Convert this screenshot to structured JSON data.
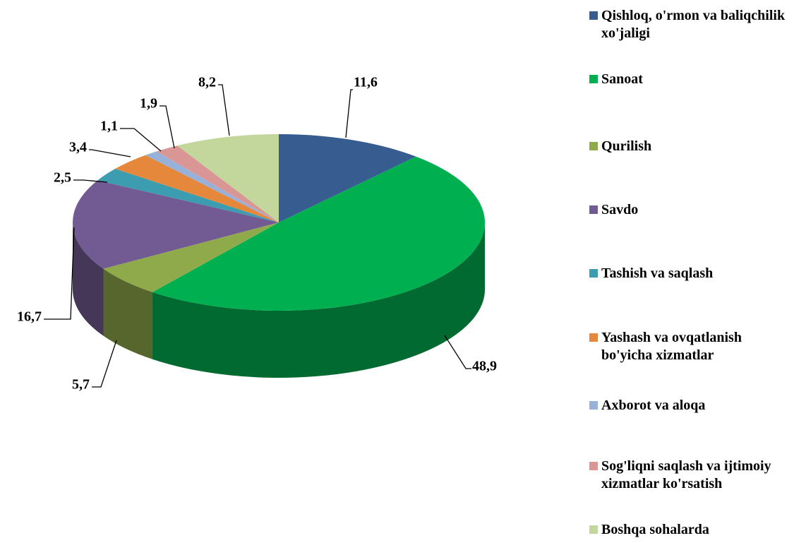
{
  "chart_data": {
    "type": "pie",
    "categories": [
      "Qishloq, o'rmon va baliqchilik xo'jaligi",
      "Sanoat",
      "Qurilish",
      "Savdo",
      "Tashish va saqlash",
      "Yashash va ovqatlanish bo'yicha xizmatlar",
      "Axborot va aloqa",
      "Sog'liqni saqlash va ijtimoiy xizmatlar ko'rsatish",
      "Boshqa sohalarda"
    ],
    "values": [
      11.6,
      48.9,
      5.7,
      16.7,
      2.5,
      3.4,
      1.1,
      1.9,
      8.2
    ],
    "value_labels": [
      "11,6",
      "48,9",
      "5,7",
      "16,7",
      "2,5",
      "3,4",
      "1,1",
      "1,9",
      "8,2"
    ],
    "colors": [
      "#375d90",
      "#00b050",
      "#8faa4b",
      "#725b93",
      "#3c9cb0",
      "#e5883b",
      "#98b1d9",
      "#d99694",
      "#c3d69b"
    ],
    "legend": "right"
  }
}
